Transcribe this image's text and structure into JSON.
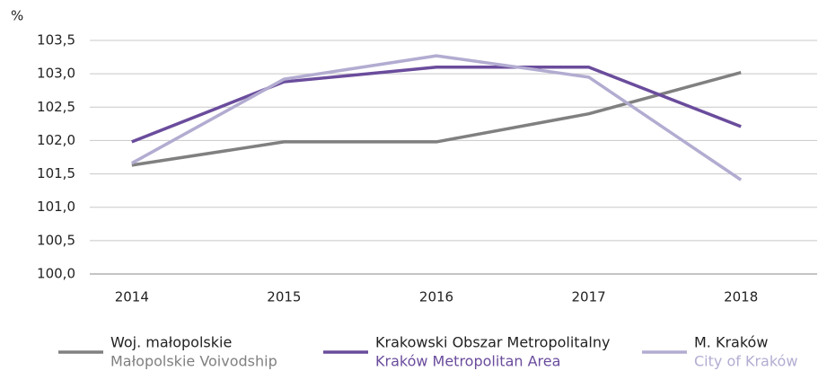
{
  "chart_data": {
    "type": "line",
    "y_unit": "%",
    "categories": [
      "2014",
      "2015",
      "2016",
      "2017",
      "2018"
    ],
    "series": [
      {
        "name": "Woj. małopolskie",
        "subname": "Małopolskie Voivodship",
        "color": "#808080",
        "values": [
          101.63,
          101.98,
          101.98,
          102.4,
          103.02
        ]
      },
      {
        "name": "Krakowski Obszar Metropolitalny",
        "subname": "Kraków Metropolitan Area",
        "color": "#6a4c9c",
        "values": [
          101.98,
          102.88,
          103.1,
          103.1,
          102.21
        ]
      },
      {
        "name": "M. Kraków",
        "subname": "City of Kraków",
        "color": "#b3acd1",
        "values": [
          101.66,
          102.92,
          103.27,
          102.95,
          101.41
        ]
      }
    ],
    "ylim": [
      100,
      103.5
    ],
    "yticks": [
      {
        "value": 100,
        "label": "100,0"
      },
      {
        "value": 100.5,
        "label": "100,5"
      },
      {
        "value": 101,
        "label": "101,0"
      },
      {
        "value": 101.5,
        "label": "101,5"
      },
      {
        "value": 102,
        "label": "102,0"
      },
      {
        "value": 102.5,
        "label": "102,5"
      },
      {
        "value": 103,
        "label": "103,0"
      },
      {
        "value": 103.5,
        "label": "103,5"
      }
    ],
    "grid": true
  }
}
